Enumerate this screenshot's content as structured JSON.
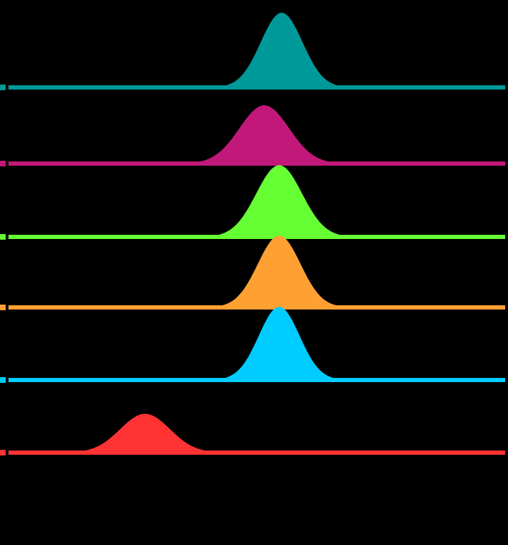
{
  "background": "#000000",
  "chart_data": {
    "type": "area",
    "title": "",
    "xlabel": "",
    "ylabel": "",
    "xlim": [
      0,
      100
    ],
    "grid": false,
    "legend": "none",
    "series": [
      {
        "color": "#009999",
        "peak_x": 55.0,
        "sigma": 4.2,
        "height": 1.0
      },
      {
        "color": "#C2187A",
        "peak_x": 51.5,
        "sigma": 5.0,
        "height": 0.78
      },
      {
        "color": "#66FF33",
        "peak_x": 54.5,
        "sigma": 4.6,
        "height": 0.96
      },
      {
        "color": "#FFA033",
        "peak_x": 54.5,
        "sigma": 4.3,
        "height": 0.96
      },
      {
        "color": "#00CCFF",
        "peak_x": 54.5,
        "sigma": 4.1,
        "height": 0.98
      },
      {
        "color": "#FF3333",
        "peak_x": 27.5,
        "sigma": 5.0,
        "height": 0.52
      }
    ]
  }
}
